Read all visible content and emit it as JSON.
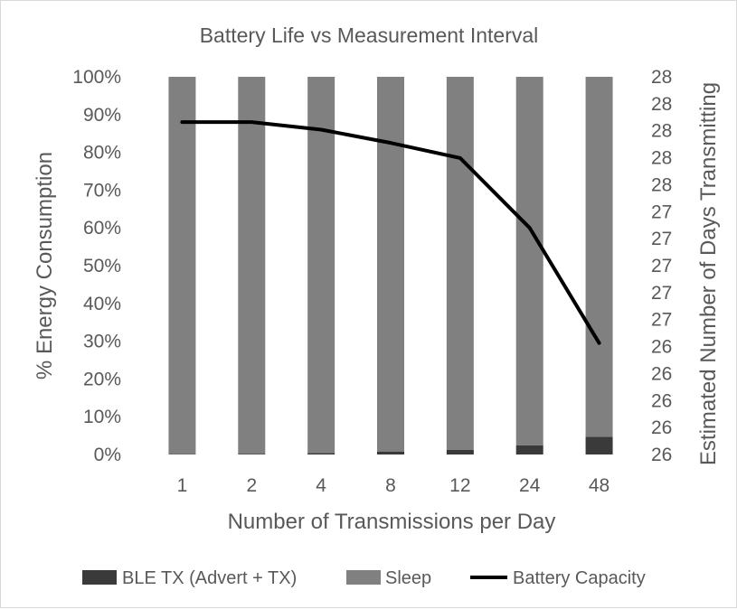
{
  "chart_data": {
    "type": "bar",
    "stacked": true,
    "title": "Battery Life vs Measurement Interval",
    "xlabel": "Number of Transmissions per Day",
    "ylabel": "% Energy Consumption",
    "y2label": "Estimated Number of Days Transmitting",
    "categories": [
      "1",
      "2",
      "4",
      "8",
      "12",
      "24",
      "48"
    ],
    "ylim": [
      0,
      100
    ],
    "y_ticks": [
      "0%",
      "10%",
      "20%",
      "30%",
      "40%",
      "50%",
      "60%",
      "70%",
      "80%",
      "90%",
      "100%"
    ],
    "y2lim": [
      26.0,
      28.0
    ],
    "y2_ticks": [
      "26",
      "26",
      "26",
      "26",
      "26",
      "27",
      "27",
      "27",
      "27",
      "27",
      "28",
      "28",
      "28",
      "28",
      "28"
    ],
    "series": [
      {
        "name": "BLE TX (Advert + TX)",
        "kind": "bar",
        "color": "#3a3a3a",
        "values": [
          0.1,
          0.2,
          0.4,
          0.8,
          1.2,
          2.4,
          4.7
        ]
      },
      {
        "name": "Sleep",
        "kind": "bar",
        "color": "#808080",
        "values": [
          99.9,
          99.8,
          99.6,
          99.2,
          98.8,
          97.6,
          95.3
        ]
      },
      {
        "name": "Battery Capacity",
        "kind": "line",
        "axis": "secondary",
        "color": "#000000",
        "values": [
          27.76,
          27.76,
          27.72,
          27.65,
          27.57,
          27.2,
          26.59
        ]
      }
    ],
    "grid": false,
    "legend": "bottom"
  }
}
